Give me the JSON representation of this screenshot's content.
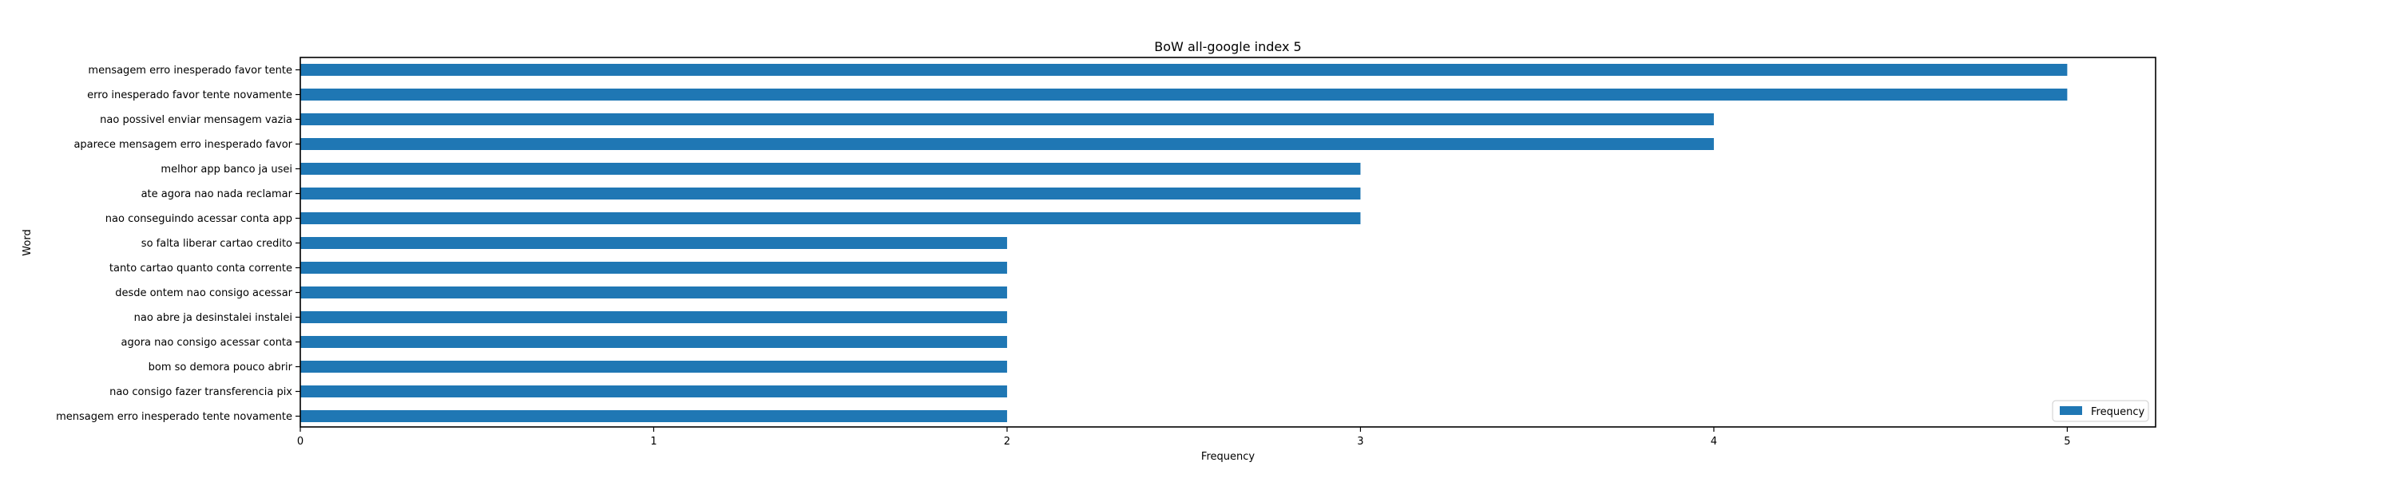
{
  "chart_data": {
    "type": "bar",
    "orientation": "horizontal",
    "title": "BoW all-google index 5",
    "xlabel": "Frequency",
    "ylabel": "Word",
    "xlim": [
      0,
      5.25
    ],
    "xticks": [
      0,
      1,
      2,
      3,
      4,
      5
    ],
    "grid": false,
    "legend_position": "lower-right",
    "categories": [
      "mensagem erro inesperado favor tente",
      "erro inesperado favor tente novamente",
      "nao possivel enviar mensagem vazia",
      "aparece mensagem erro inesperado favor",
      "melhor app banco ja usei",
      "ate agora nao nada reclamar",
      "nao conseguindo acessar conta app",
      "so falta liberar cartao credito",
      "tanto cartao quanto conta corrente",
      "desde ontem nao consigo acessar",
      "nao abre ja desinstalei instalei",
      "agora nao consigo acessar conta",
      "bom so demora pouco abrir",
      "nao consigo fazer transferencia pix",
      "mensagem erro inesperado tente novamente"
    ],
    "series": [
      {
        "name": "Frequency",
        "color": "#1f77b4",
        "values": [
          5,
          5,
          4,
          4,
          3,
          3,
          3,
          2,
          2,
          2,
          2,
          2,
          2,
          2,
          2
        ]
      }
    ]
  }
}
